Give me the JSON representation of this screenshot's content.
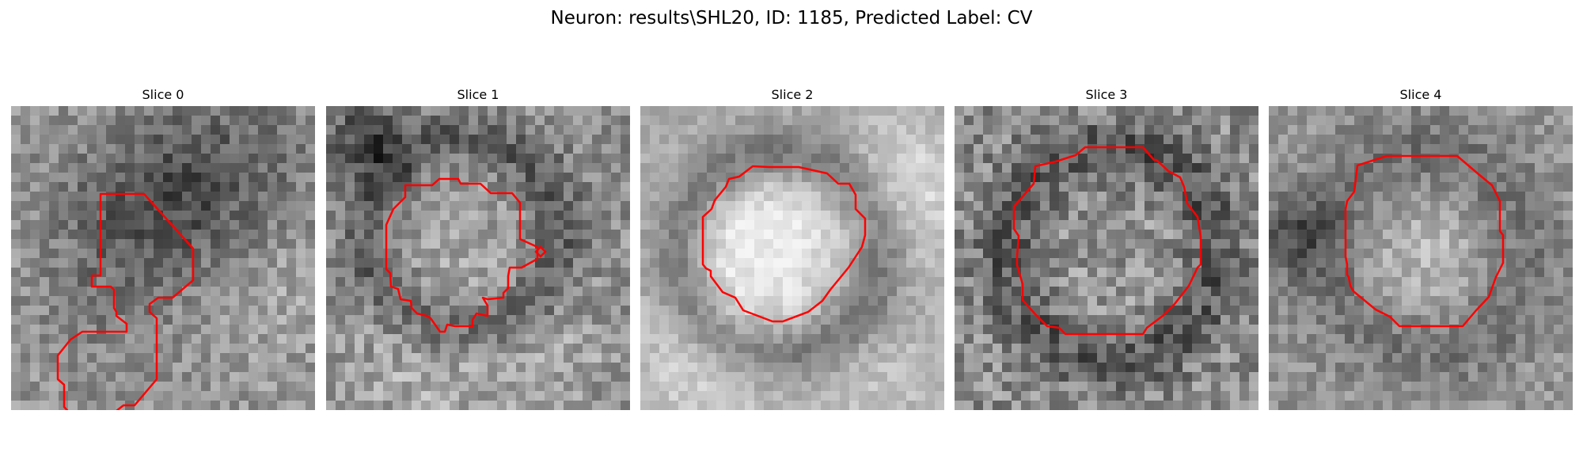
{
  "figure": {
    "suptitle": "Neuron: results\\SHL20, ID: 1185, Predicted Label: CV"
  },
  "colors": {
    "contour": "#ff0000",
    "background": "#ffffff"
  },
  "panels": [
    {
      "title": "Slice 0"
    },
    {
      "title": "Slice 1"
    },
    {
      "title": "Slice 2"
    },
    {
      "title": "Slice 3"
    },
    {
      "title": "Slice 4"
    }
  ]
}
